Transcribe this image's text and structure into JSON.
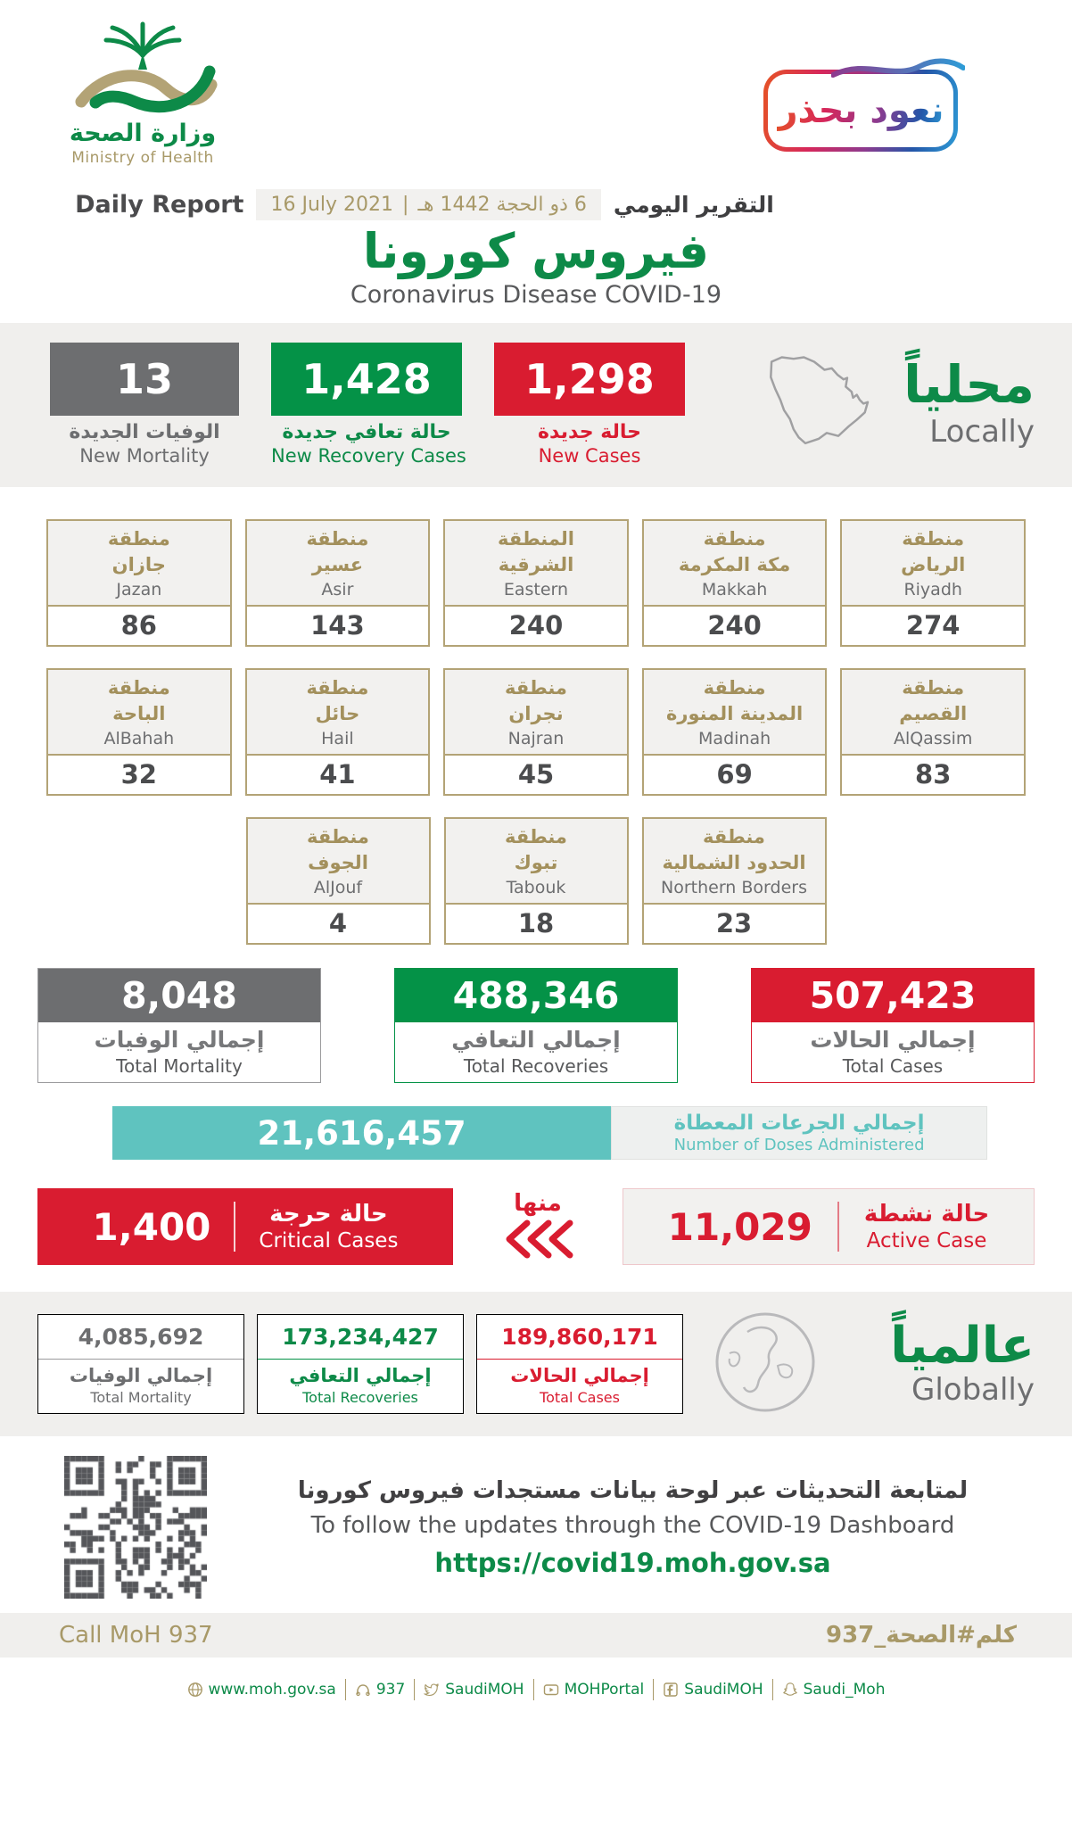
{
  "brand": {
    "ministry_ar": "وزارة الصحة",
    "ministry_en": "Ministry of Health",
    "badge_ar": "نعود بحذر"
  },
  "report_line": {
    "daily_report_en": "Daily Report",
    "date_gregorian": "16 July 2021",
    "date_separator": "|",
    "date_hijri": "6 ذو الحجة 1442 هـ",
    "daily_report_ar": "التقرير اليومي"
  },
  "title": {
    "ar": "فيروس كورونا",
    "en": "Coronavirus Disease COVID-19"
  },
  "locally": {
    "heading_ar": "محلياً",
    "heading_en": "Locally",
    "new_mortality": {
      "value": "13",
      "label_ar": "الوفيات الجديدة",
      "label_en": "New Mortality"
    },
    "new_recoveries": {
      "value": "1,428",
      "label_ar": "حالة تعافي جديدة",
      "label_en": "New Recovery Cases"
    },
    "new_cases": {
      "value": "1,298",
      "label_ar": "حالة جديدة",
      "label_en": "New Cases"
    }
  },
  "regions": [
    {
      "name_ar": "منطقة\nجازان",
      "name_en": "Jazan",
      "value": "86"
    },
    {
      "name_ar": "منطقة\nعسير",
      "name_en": "Asir",
      "value": "143"
    },
    {
      "name_ar": "المنطقة\nالشرقية",
      "name_en": "Eastern",
      "value": "240"
    },
    {
      "name_ar": "منطقة\nمكة المكرمة",
      "name_en": "Makkah",
      "value": "240"
    },
    {
      "name_ar": "منطقة\nالرياض",
      "name_en": "Riyadh",
      "value": "274"
    },
    {
      "name_ar": "منطقة\nالباحة",
      "name_en": "AlBahah",
      "value": "32"
    },
    {
      "name_ar": "منطقة\nحائل",
      "name_en": "Hail",
      "value": "41"
    },
    {
      "name_ar": "منطقة\nنجران",
      "name_en": "Najran",
      "value": "45"
    },
    {
      "name_ar": "منطقة\nالمدينة المنورة",
      "name_en": "Madinah",
      "value": "69"
    },
    {
      "name_ar": "منطقة\nالقصيم",
      "name_en": "AlQassim",
      "value": "83"
    },
    {
      "name_ar": "منطقة\nالجوف",
      "name_en": "AlJouf",
      "value": "4"
    },
    {
      "name_ar": "منطقة\nتبوك",
      "name_en": "Tabouk",
      "value": "18"
    },
    {
      "name_ar": "منطقة\nالحدود الشمالية",
      "name_en": "Northern Borders",
      "value": "23"
    }
  ],
  "totals_local": {
    "mortality": {
      "value": "8,048",
      "label_ar": "إجمالي الوفيات",
      "label_en": "Total Mortality"
    },
    "recoveries": {
      "value": "488,346",
      "label_ar": "إجمالي التعافي",
      "label_en": "Total Recoveries"
    },
    "cases": {
      "value": "507,423",
      "label_ar": "إجمالي الحالات",
      "label_en": "Total Cases"
    }
  },
  "doses": {
    "value": "21,616,457",
    "label_ar": "إجمالي الجرعات المعطاة",
    "label_en": "Number of Doses Administered"
  },
  "critical_active": {
    "critical": {
      "value": "1,400",
      "label_ar": "حالة حرجة",
      "label_en": "Critical Cases"
    },
    "of_which_ar": "منها",
    "active": {
      "value": "11,029",
      "label_ar": "حالة نشطة",
      "label_en": "Active Case"
    }
  },
  "globally": {
    "heading_ar": "عالمياً",
    "heading_en": "Globally",
    "mortality": {
      "value": "4,085,692",
      "label_ar": "إجمالي الوفيات",
      "label_en": "Total Mortality"
    },
    "recoveries": {
      "value": "173,234,427",
      "label_ar": "إجمالي التعافي",
      "label_en": "Total Recoveries"
    },
    "cases": {
      "value": "189,860,171",
      "label_ar": "إجمالي الحالات",
      "label_en": "Total Cases"
    }
  },
  "dashboard": {
    "line_ar": "لمتابعة التحديثات عبر لوحة بيانات مستجدات فيروس كورونا",
    "line_en": "To follow the updates through the COVID-19 Dashboard",
    "url": "https://covid19.moh.gov.sa"
  },
  "call_band": {
    "en": "Call MoH 937",
    "ar_hashtag": "كلم#الصحة_937"
  },
  "footer": {
    "items": [
      {
        "icon": "globe-icon",
        "label": "www.moh.gov.sa"
      },
      {
        "icon": "phone-icon",
        "label": "937"
      },
      {
        "icon": "twitter-icon",
        "label": "SaudiMOH"
      },
      {
        "icon": "youtube-icon",
        "label": "MOHPortal"
      },
      {
        "icon": "facebook-icon",
        "label": "SaudiMOH"
      },
      {
        "icon": "snapchat-icon",
        "label": "Saudi_Moh"
      }
    ]
  },
  "colors": {
    "green": "#0d8a48",
    "red": "#d91c30",
    "gray": "#6d6e70",
    "teal": "#5fc3bf",
    "gold": "#a89968",
    "band": "#f0efed"
  }
}
